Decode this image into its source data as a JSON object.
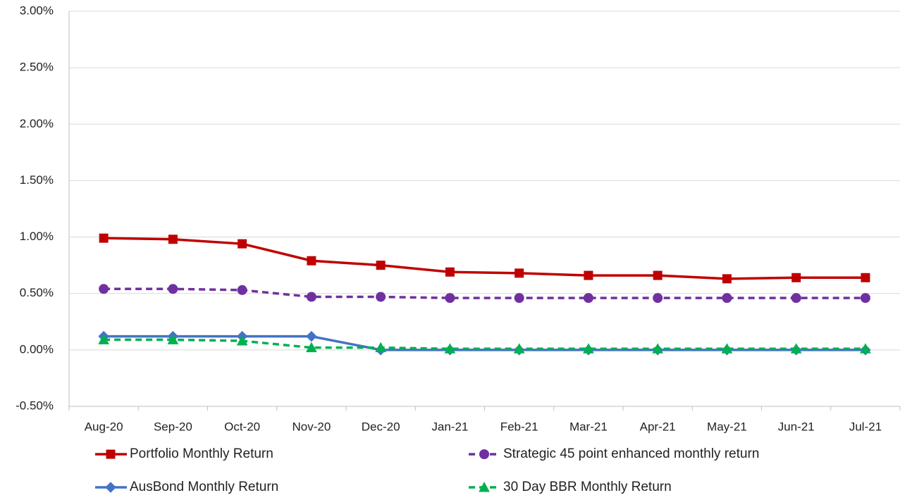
{
  "chart_data": {
    "type": "line",
    "categories": [
      "Aug-20",
      "Sep-20",
      "Oct-20",
      "Nov-20",
      "Dec-20",
      "Jan-21",
      "Feb-21",
      "Mar-21",
      "Apr-21",
      "May-21",
      "Jun-21",
      "Jul-21"
    ],
    "series": [
      {
        "name": "Portfolio Monthly Return",
        "color": "#c00000",
        "dashed": false,
        "marker": "square",
        "values": [
          0.99,
          0.98,
          0.94,
          0.79,
          0.75,
          0.69,
          0.68,
          0.66,
          0.66,
          0.63,
          0.64,
          0.64
        ]
      },
      {
        "name": "Strategic 45 point enhanced monthly return",
        "color": "#7030a0",
        "dashed": true,
        "marker": "circle",
        "values": [
          0.54,
          0.54,
          0.53,
          0.47,
          0.47,
          0.46,
          0.46,
          0.46,
          0.46,
          0.46,
          0.46,
          0.46
        ]
      },
      {
        "name": "AusBond Monthly Return",
        "color": "#4472c4",
        "dashed": false,
        "marker": "diamond",
        "values": [
          0.12,
          0.12,
          0.12,
          0.12,
          0.0,
          0.0,
          0.0,
          0.0,
          0.0,
          0.0,
          0.0,
          0.0
        ]
      },
      {
        "name": "30 Day BBR Monthly Return",
        "color": "#00b050",
        "dashed": true,
        "marker": "triangle",
        "values": [
          0.09,
          0.09,
          0.08,
          0.02,
          0.02,
          0.01,
          0.01,
          0.01,
          0.01,
          0.01,
          0.01,
          0.01
        ]
      }
    ],
    "ylim": [
      -0.5,
      3.0
    ],
    "yticks": [
      {
        "value": -0.5,
        "label": "-0.50%"
      },
      {
        "value": 0,
        "label": "0.00%"
      },
      {
        "value": 0.5,
        "label": "0.50%"
      },
      {
        "value": 1.0,
        "label": "1.00%"
      },
      {
        "value": 1.5,
        "label": "1.50%"
      },
      {
        "value": 2.0,
        "label": "2.00%"
      },
      {
        "value": 2.5,
        "label": "2.50%"
      },
      {
        "value": 3.0,
        "label": "3.00%"
      }
    ],
    "grid": true
  }
}
